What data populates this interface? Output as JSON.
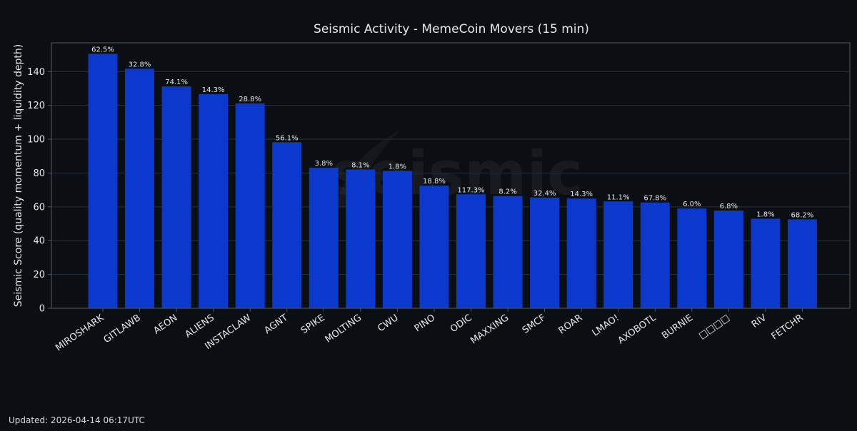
{
  "footer": {
    "updated": "Updated: 2026-04-14 06:17UTC"
  },
  "watermark": {
    "text": "seismic"
  },
  "colors": {
    "background": "#0b0e12",
    "bar": "#0b39ce",
    "grid": "#263242",
    "axis": "#4d5967",
    "text": "#e6e8eb"
  },
  "chart_data": {
    "type": "bar",
    "title": "Seismic Activity - MemeCoin Movers (15 min)",
    "xlabel": "",
    "ylabel": "Seismic Score (quality momentum + liquidity depth)",
    "ylim": [
      0,
      157
    ],
    "yticks": [
      0,
      20,
      40,
      60,
      80,
      100,
      120,
      140
    ],
    "grid": true,
    "legend": "none",
    "categories": [
      "MIROSHARK",
      "GITLAWB",
      "AEON",
      "ALIENS",
      "INSTACLAW",
      "AGNT",
      "SPIKE",
      "MOLTING",
      "CWU",
      "PINO",
      "ODIC",
      "MAXXING",
      "SMCF",
      "ROAR",
      "LMAO!",
      "AXOBOTL",
      "BURNIE",
      "□□□□",
      "RIV",
      "FETCHR"
    ],
    "values": [
      150.5,
      141.7,
      131.2,
      126.6,
      121.2,
      98.2,
      83.2,
      82.1,
      81.3,
      72.5,
      67.4,
      66.4,
      65.5,
      64.9,
      63.2,
      62.6,
      59.0,
      57.8,
      53.0,
      52.6
    ],
    "data_labels": [
      "62.5%",
      "32.8%",
      "74.1%",
      "14.3%",
      "28.8%",
      "56.1%",
      "3.8%",
      "8.1%",
      "1.8%",
      "18.8%",
      "117.3%",
      "8.2%",
      "32.4%",
      "14.3%",
      "11.1%",
      "67.8%",
      "6.0%",
      "6.8%",
      "1.8%",
      "68.2%"
    ]
  }
}
